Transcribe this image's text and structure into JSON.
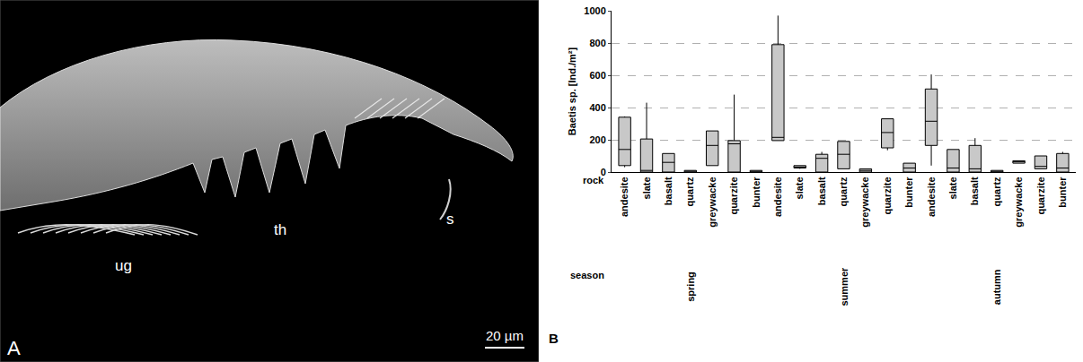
{
  "panels": [
    {
      "letter": "A",
      "type": "micrograph",
      "labels": [
        "ug",
        "th",
        "s"
      ],
      "scale_bar": "20 µm"
    }
  ],
  "chart_data": {
    "type": "box",
    "letter": "B",
    "y_label": "Baetis sp. [Ind./m²]",
    "x_row_label": "rock",
    "group_row_label": "season",
    "categories": [
      "andesite",
      "slate",
      "basalt",
      "quartz",
      "greywacke",
      "quarzite",
      "bunter",
      "andesite",
      "slate",
      "basalt",
      "quartz",
      "greywacke",
      "quarzite",
      "bunter",
      "andesite",
      "slate",
      "basalt",
      "quartz",
      "greywacke",
      "quarzite",
      "bunter"
    ],
    "groups": [
      "spring",
      "spring",
      "spring",
      "spring",
      "spring",
      "spring",
      "spring",
      "summer",
      "summer",
      "summer",
      "summer",
      "summer",
      "summer",
      "summer",
      "autumn",
      "autumn",
      "autumn",
      "autumn",
      "autumn",
      "autumn",
      "autumn"
    ],
    "lowerfence": [
      30,
      0,
      0,
      0,
      40,
      0,
      0,
      195,
      20,
      0,
      20,
      0,
      135,
      0,
      40,
      0,
      0,
      0,
      55,
      20,
      0
    ],
    "q1": [
      40,
      0,
      0,
      0,
      40,
      0,
      0,
      195,
      25,
      0,
      20,
      0,
      150,
      0,
      165,
      0,
      0,
      0,
      55,
      20,
      0
    ],
    "median": [
      140,
      10,
      60,
      5,
      165,
      175,
      3,
      215,
      30,
      85,
      110,
      10,
      245,
      25,
      315,
      25,
      20,
      3,
      65,
      35,
      25
    ],
    "q3": [
      340,
      205,
      115,
      10,
      255,
      195,
      10,
      790,
      40,
      110,
      190,
      20,
      330,
      55,
      515,
      140,
      165,
      10,
      70,
      100,
      115
    ],
    "upperfence": [
      345,
      430,
      115,
      10,
      255,
      480,
      10,
      970,
      40,
      125,
      190,
      20,
      330,
      55,
      605,
      140,
      210,
      10,
      70,
      100,
      125
    ],
    "color": "#c8c8c8",
    "ylim": [
      0,
      1000
    ],
    "yticks": [
      0,
      200,
      400,
      600,
      800,
      1000
    ],
    "grid": true
  }
}
